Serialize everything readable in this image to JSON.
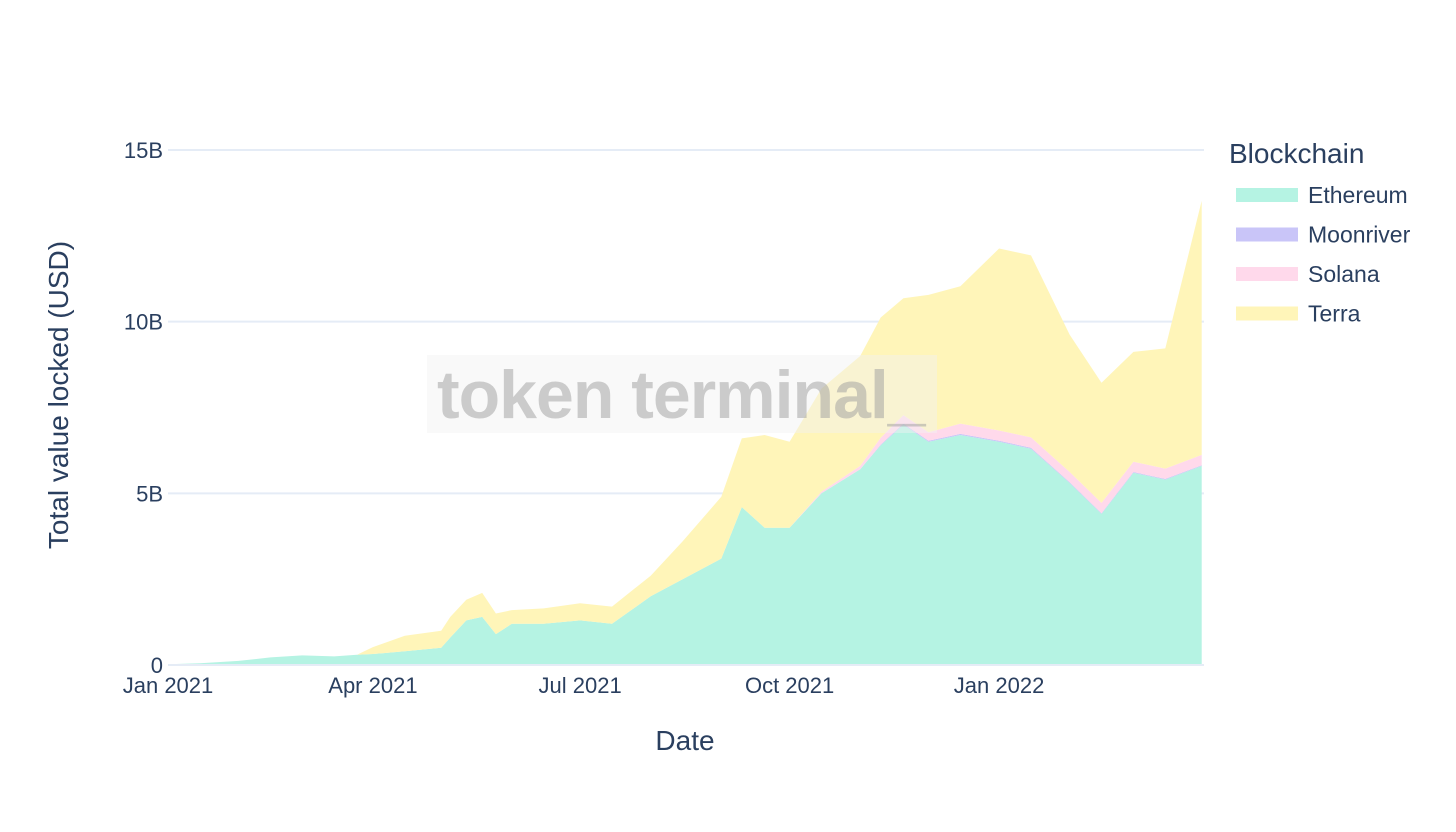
{
  "chart_data": {
    "type": "area",
    "stacked": true,
    "xlabel": "Date",
    "ylabel": "Total value locked (USD)",
    "legend_title": "Blockchain",
    "legend_position": "right",
    "grid": true,
    "x_ticks": [
      {
        "date": "2021-01-01",
        "label": "Jan 2021"
      },
      {
        "date": "2021-04-01",
        "label": "Apr 2021"
      },
      {
        "date": "2021-07-01",
        "label": "Jul 2021"
      },
      {
        "date": "2021-10-01",
        "label": "Oct 2021"
      },
      {
        "date": "2022-01-01",
        "label": "Jan 2022"
      }
    ],
    "y_ticks": [
      {
        "value": 0,
        "label": "0"
      },
      {
        "value": 5000000000,
        "label": "5B"
      },
      {
        "value": 10000000000,
        "label": "10B"
      },
      {
        "value": 15000000000,
        "label": "15B"
      }
    ],
    "xlim": [
      "2021-01-01",
      "2022-04-01"
    ],
    "ylim": [
      0,
      15000000000
    ],
    "x": [
      "2021-01-01",
      "2021-01-15",
      "2021-02-01",
      "2021-02-15",
      "2021-03-01",
      "2021-03-15",
      "2021-03-25",
      "2021-04-01",
      "2021-04-15",
      "2021-05-01",
      "2021-05-05",
      "2021-05-12",
      "2021-05-19",
      "2021-05-25",
      "2021-06-01",
      "2021-06-15",
      "2021-07-01",
      "2021-07-15",
      "2021-08-01",
      "2021-08-15",
      "2021-09-01",
      "2021-09-10",
      "2021-09-20",
      "2021-10-01",
      "2021-10-15",
      "2021-11-01",
      "2021-11-10",
      "2021-11-20",
      "2021-12-01",
      "2021-12-15",
      "2022-01-01",
      "2022-01-15",
      "2022-02-01",
      "2022-02-15",
      "2022-03-01",
      "2022-03-15",
      "2022-03-31"
    ],
    "series": [
      {
        "name": "Ethereum",
        "color": "#b5f3e3",
        "values": [
          0.02,
          0.05,
          0.12,
          0.22,
          0.28,
          0.25,
          0.3,
          0.32,
          0.4,
          0.5,
          0.8,
          1.3,
          1.4,
          0.9,
          1.2,
          1.2,
          1.3,
          1.2,
          2.0,
          2.5,
          3.1,
          4.6,
          4.0,
          4.0,
          5.0,
          5.7,
          6.4,
          7.0,
          6.5,
          6.7,
          6.5,
          6.3,
          5.3,
          4.4,
          5.6,
          5.4,
          5.8
        ]
      },
      {
        "name": "Moonriver",
        "color": "#c9c5f8",
        "values": [
          0,
          0,
          0,
          0,
          0,
          0,
          0,
          0,
          0,
          0,
          0,
          0,
          0,
          0,
          0,
          0,
          0,
          0,
          0,
          0,
          0,
          0,
          0,
          0,
          0,
          0,
          0.02,
          0.03,
          0.03,
          0.03,
          0.03,
          0.03,
          0.02,
          0.02,
          0.02,
          0.02,
          0.02
        ]
      },
      {
        "name": "Solana",
        "color": "#ffd9eb",
        "values": [
          0,
          0,
          0,
          0,
          0,
          0,
          0,
          0,
          0,
          0,
          0,
          0,
          0,
          0,
          0,
          0,
          0,
          0,
          0,
          0,
          0,
          0,
          0,
          0,
          0.05,
          0.1,
          0.2,
          0.25,
          0.25,
          0.3,
          0.3,
          0.3,
          0.3,
          0.3,
          0.3,
          0.3,
          0.3
        ]
      },
      {
        "name": "Terra",
        "color": "#fff5b9",
        "values": [
          0,
          0,
          0,
          0,
          0,
          0,
          0,
          0.2,
          0.45,
          0.5,
          0.6,
          0.6,
          0.7,
          0.6,
          0.4,
          0.45,
          0.5,
          0.5,
          0.6,
          1.1,
          1.8,
          2.0,
          2.7,
          2.5,
          3.0,
          3.2,
          3.5,
          3.4,
          4.0,
          4.0,
          5.3,
          5.3,
          4.0,
          3.5,
          3.2,
          3.5,
          7.4
        ]
      }
    ],
    "values_unit": "billions USD",
    "watermark": "token terminal_"
  }
}
